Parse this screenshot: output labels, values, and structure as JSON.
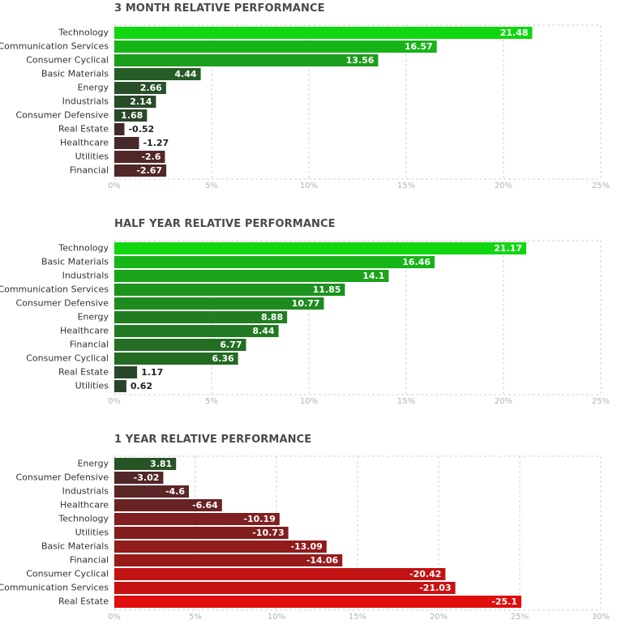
{
  "chart_data": [
    {
      "type": "bar",
      "orientation": "horizontal",
      "title": "3 MONTH RELATIVE PERFORMANCE",
      "categories": [
        "Technology",
        "Communication Services",
        "Consumer Cyclical",
        "Basic Materials",
        "Energy",
        "Industrials",
        "Consumer Defensive",
        "Real Estate",
        "Healthcare",
        "Utilities",
        "Financial"
      ],
      "values": [
        21.48,
        16.57,
        13.56,
        4.44,
        2.66,
        2.14,
        1.68,
        -0.52,
        -1.27,
        -2.6,
        -2.67
      ],
      "value_labels": [
        "21.48",
        "16.57",
        "13.56",
        "4.44",
        "2.66",
        "2.14",
        "1.68",
        "-0.52",
        "-1.27",
        "-2.6",
        "-2.67"
      ],
      "xlim": [
        0,
        25
      ],
      "xticks": [
        "0%",
        "5%",
        "10%",
        "15%",
        "20%",
        "25%"
      ],
      "grid": true,
      "xlabel": "",
      "ylabel": ""
    },
    {
      "type": "bar",
      "orientation": "horizontal",
      "title": "HALF YEAR RELATIVE PERFORMANCE",
      "categories": [
        "Technology",
        "Basic Materials",
        "Industrials",
        "Communication Services",
        "Consumer Defensive",
        "Energy",
        "Healthcare",
        "Financial",
        "Consumer Cyclical",
        "Real Estate",
        "Utilities"
      ],
      "values": [
        21.17,
        16.46,
        14.1,
        11.85,
        10.77,
        8.88,
        8.44,
        6.77,
        6.36,
        1.17,
        0.62
      ],
      "value_labels": [
        "21.17",
        "16.46",
        "14.1",
        "11.85",
        "10.77",
        "8.88",
        "8.44",
        "6.77",
        "6.36",
        "1.17",
        "0.62"
      ],
      "xlim": [
        0,
        25
      ],
      "xticks": [
        "0%",
        "5%",
        "10%",
        "15%",
        "20%",
        "25%"
      ],
      "grid": true,
      "xlabel": "",
      "ylabel": ""
    },
    {
      "type": "bar",
      "orientation": "horizontal",
      "title": "1 YEAR RELATIVE PERFORMANCE",
      "categories": [
        "Energy",
        "Consumer Defensive",
        "Industrials",
        "Healthcare",
        "Technology",
        "Utilities",
        "Basic Materials",
        "Financial",
        "Consumer Cyclical",
        "Communication Services",
        "Real Estate"
      ],
      "values": [
        3.81,
        -3.02,
        -4.6,
        -6.64,
        -10.19,
        -10.73,
        -13.09,
        -14.06,
        -20.42,
        -21.03,
        -25.1
      ],
      "value_labels": [
        "3.81",
        "-3.02",
        "-4.6",
        "-6.64",
        "-10.19",
        "-10.73",
        "-13.09",
        "-14.06",
        "-20.42",
        "-21.03",
        "-25.1"
      ],
      "xlim": [
        0,
        30
      ],
      "xticks": [
        "0%",
        "5%",
        "10%",
        "15%",
        "20%",
        "25%",
        "30%"
      ],
      "grid": true,
      "xlabel": "",
      "ylabel": ""
    }
  ],
  "colors": {
    "positive_strong": "#11d711",
    "positive_weak": "#2b3d2b",
    "negative_weak": "#3d2b2b",
    "negative_strong": "#e00d0d",
    "grid": "#d0d0d0",
    "tick_text": "#b3b3b3",
    "title_text": "#4a4a4a"
  }
}
